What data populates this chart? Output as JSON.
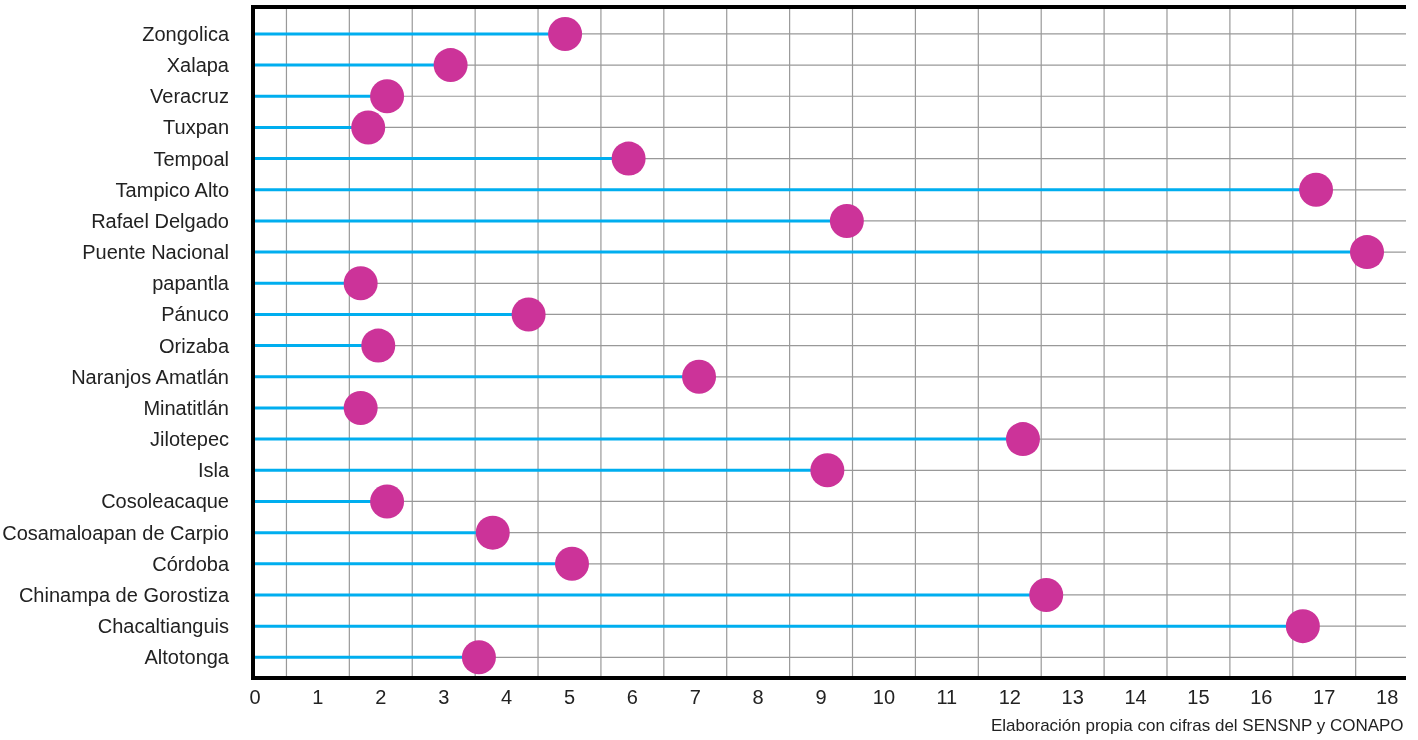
{
  "chart_data": {
    "type": "lollipop",
    "orientation": "horizontal",
    "categories": [
      "Zongolica",
      "Xalapa",
      "Veracruz",
      "Tuxpan",
      "Tempoal",
      "Tampico Alto",
      "Rafael Delgado",
      "Puente Nacional",
      "papantla",
      "Pánuco",
      "Orizaba",
      "Naranjos Amatlán",
      "Minatitlán",
      "Jilotepec",
      "Isla",
      "Cosoleacaque",
      "Cosamaloapan de Carpio",
      "Córdoba",
      "Chinampa de Gorostiza",
      "Chacaltianguis",
      "Altotonga"
    ],
    "series": [
      {
        "color": "#cc3399",
        "values": [
          4.93,
          3.11,
          2.1,
          1.8,
          5.94,
          16.87,
          9.41,
          17.68,
          1.68,
          4.35,
          1.96,
          7.06,
          1.68,
          12.21,
          9.1,
          2.1,
          3.78,
          5.04,
          12.58,
          16.66,
          3.56
        ]
      }
    ],
    "xlim": [
      0,
      18.3
    ],
    "xticks": [
      0,
      1,
      2,
      3,
      4,
      5,
      6,
      7,
      8,
      9,
      10,
      11,
      12,
      13,
      14,
      15,
      16,
      17,
      18,
      {
        "value": 0.5,
        "label": null
      },
      {
        "value": 1.5,
        "label": null
      },
      {
        "value": 2.5,
        "label": null
      },
      {
        "value": 3.5,
        "label": null
      },
      {
        "value": 4.5,
        "label": null
      },
      {
        "value": 5.5,
        "label": null
      },
      {
        "value": 6.5,
        "label": null
      },
      {
        "value": 7.5,
        "label": null
      },
      {
        "value": 8.5,
        "label": null
      },
      {
        "value": 9.5,
        "label": null
      },
      {
        "value": 10.5,
        "label": null
      },
      {
        "value": 11.5,
        "label": null
      },
      {
        "value": 12.5,
        "label": null
      },
      {
        "value": 13.5,
        "label": null
      },
      {
        "value": 14.5,
        "label": null
      },
      {
        "value": 15.5,
        "label": null
      },
      {
        "value": 16.5,
        "label": null
      },
      {
        "value": 17.5,
        "label": null
      }
    ],
    "grid": true,
    "marker": "circle",
    "annotations": [
      "Elaboración propia con cifras del SENSNP y CONAPO"
    ]
  }
}
